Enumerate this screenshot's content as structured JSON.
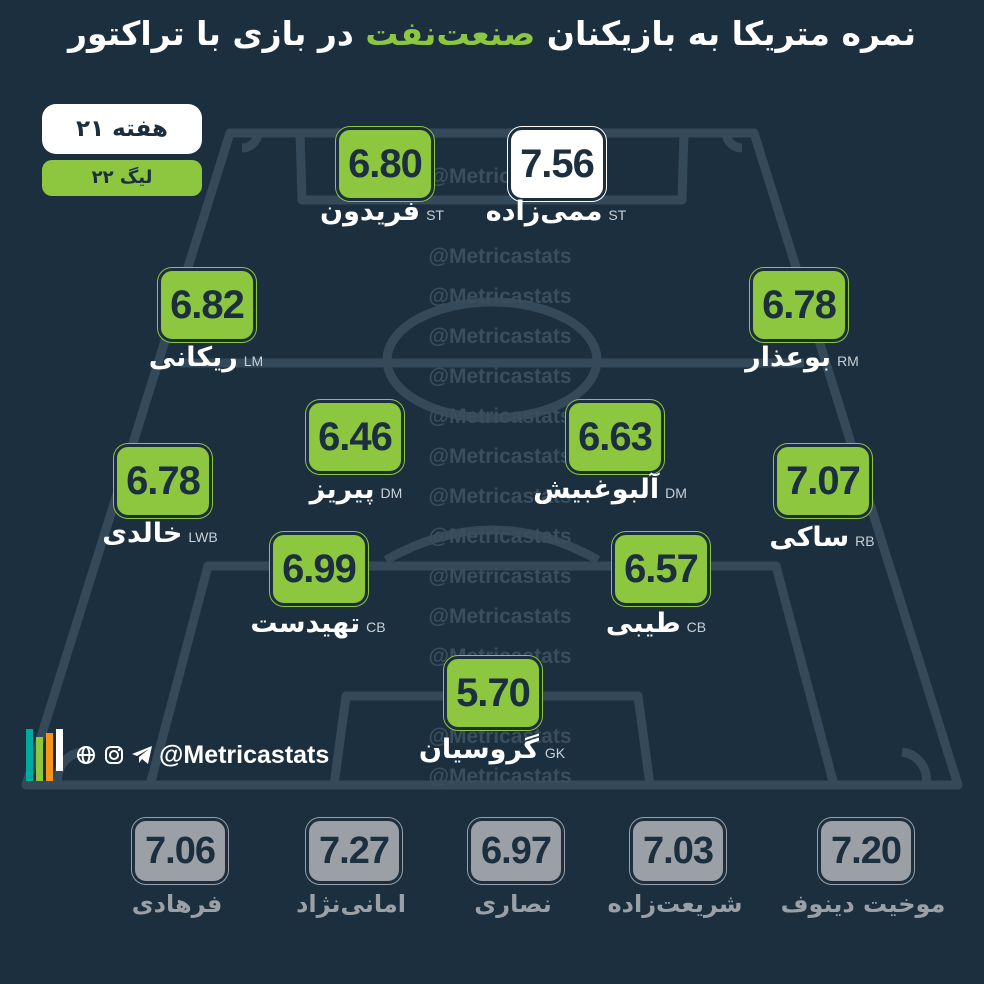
{
  "title": {
    "part1": "نمره متریکا به بازیکنان",
    "highlight": "صنعت‌نفت",
    "part2": "در بازی با تراکتور"
  },
  "badges": {
    "week": "هفته ۲۱",
    "league": "لیگ ۲۲"
  },
  "colors": {
    "background": "#1c2f3e",
    "accent": "#8dc63f",
    "highlight_box": "#ffffff",
    "substitute_box": "#9aa0a6"
  },
  "watermark": "@Metricastats",
  "players": [
    {
      "rating": "6.80",
      "name": "فریدون",
      "pos": "ST"
    },
    {
      "rating": "7.56",
      "name": "ممی‌زاده",
      "pos": "ST"
    },
    {
      "rating": "6.82",
      "name": "ریکانی",
      "pos": "LM"
    },
    {
      "rating": "6.78",
      "name": "بوعذار",
      "pos": "RM"
    },
    {
      "rating": "6.46",
      "name": "پیریز",
      "pos": "DM"
    },
    {
      "rating": "6.63",
      "name": "آلبوغبیش",
      "pos": "DM"
    },
    {
      "rating": "6.78",
      "name": "خالدی",
      "pos": "LWB"
    },
    {
      "rating": "7.07",
      "name": "ساکی",
      "pos": "RB"
    },
    {
      "rating": "6.99",
      "name": "تهیدست",
      "pos": "CB"
    },
    {
      "rating": "6.57",
      "name": "طیبی",
      "pos": "CB"
    },
    {
      "rating": "5.70",
      "name": "گروسیان",
      "pos": "GK"
    }
  ],
  "subs": [
    {
      "rating": "7.06",
      "name": "فرهادی"
    },
    {
      "rating": "7.27",
      "name": "امانی‌نژاد"
    },
    {
      "rating": "6.97",
      "name": "نصاری"
    },
    {
      "rating": "7.03",
      "name": "شریعت‌زاده"
    },
    {
      "rating": "7.20",
      "name": "موخیت دینوف"
    }
  ],
  "brand": {
    "handle": "@Metricastats",
    "icons": [
      "globe-icon",
      "instagram-icon",
      "telegram-icon"
    ],
    "logo_colors": [
      "#00a99d",
      "#8dc63f",
      "#f7941d",
      "#ffffff"
    ]
  }
}
